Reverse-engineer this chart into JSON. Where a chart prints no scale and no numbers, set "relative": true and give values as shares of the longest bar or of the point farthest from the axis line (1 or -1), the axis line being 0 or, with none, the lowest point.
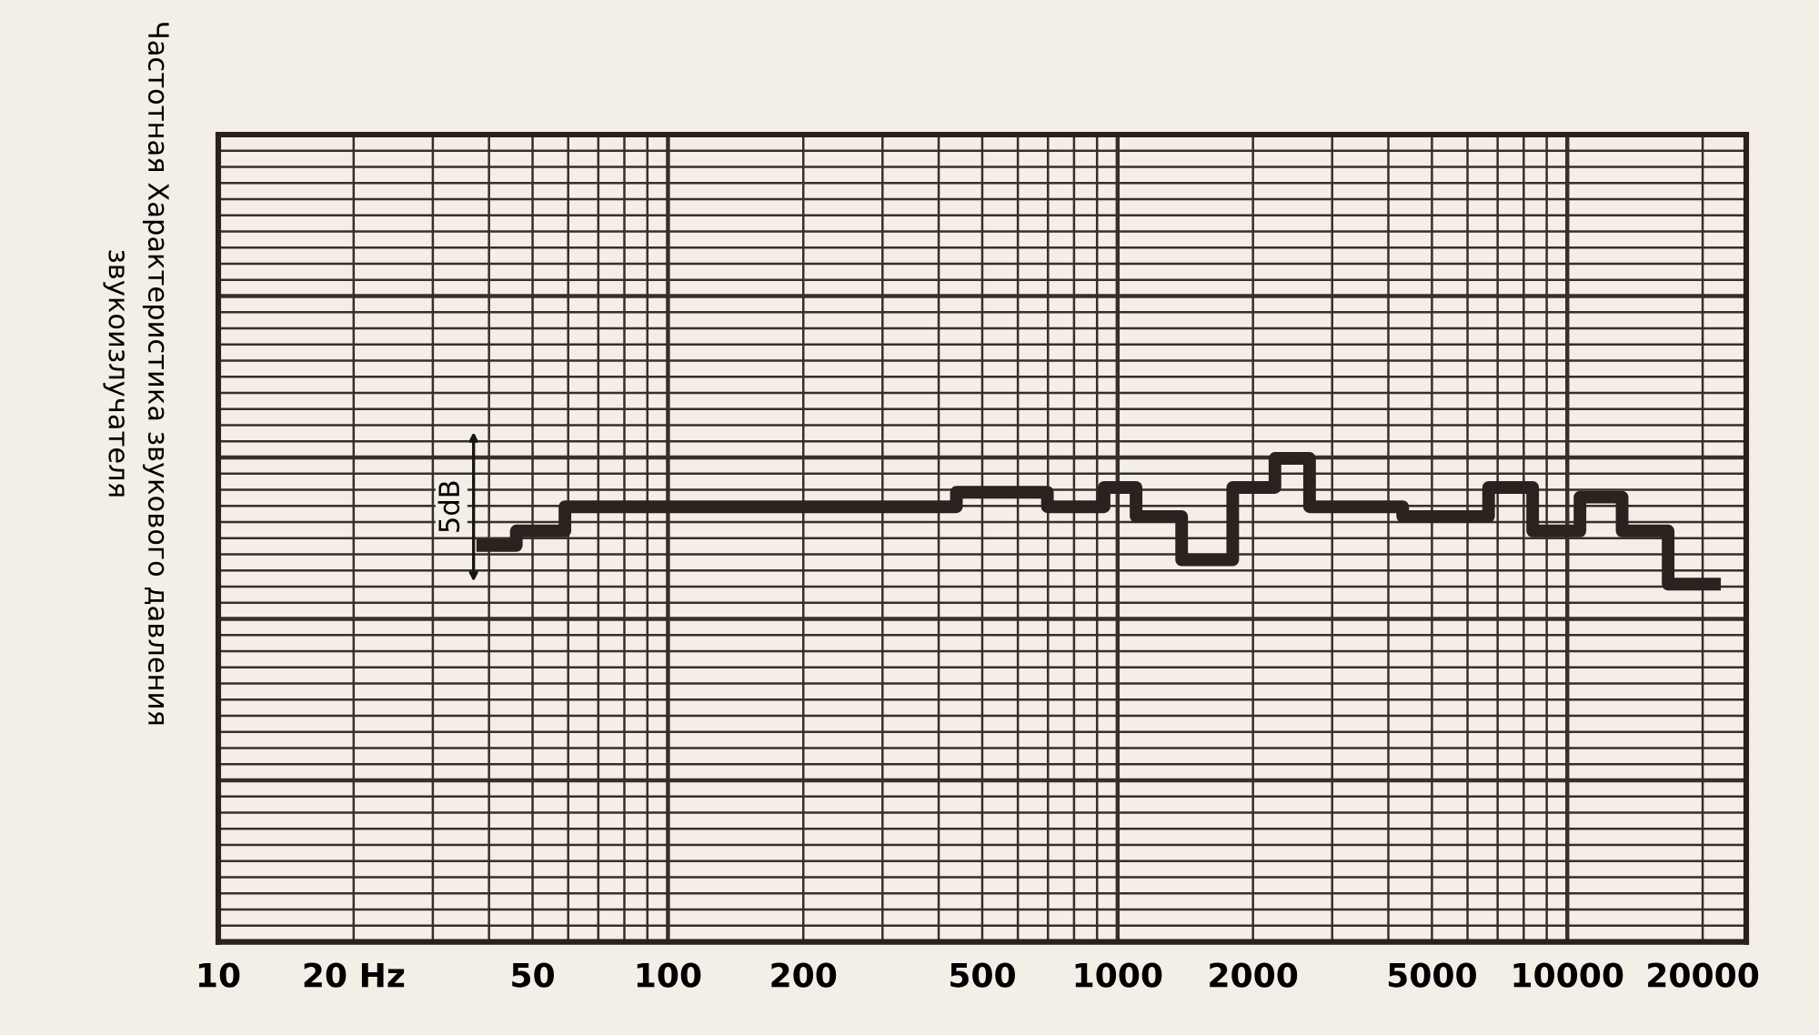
{
  "chart_data": {
    "type": "step",
    "title": "Частотная Характеристика звукового давления\nзвукоизлучателя",
    "relative": true,
    "log": "x",
    "grid": true,
    "tick_labels": "x",
    "legend": false,
    "line_style": "solid",
    "marker": "none",
    "x": [
      37.5,
      46,
      59,
      438,
      698,
      933,
      1099,
      1388,
      1803,
      2238,
      2672,
      4305,
      6683,
      8375,
      10670,
      13240,
      16760,
      21950
    ],
    "series": [
      {
        "color": "#2b2220",
        "values": [
          0.82,
          0.85,
          0.9,
          0.93,
          0.9,
          0.94,
          0.88,
          0.79,
          0.94,
          1,
          0.9,
          0.88,
          0.94,
          0.85,
          0.92,
          0.85,
          0.74,
          0.74
        ]
      }
    ],
    "xlim": [
      10,
      25000
    ],
    "xticks": [
      10,
      {
        "value": 20,
        "label": "20 Hz"
      },
      50,
      100,
      200,
      500,
      1000,
      2000,
      5000,
      10000,
      20000
    ],
    "annotations": [
      {
        "text": "5dB",
        "x": 33,
        "y": 0.9
      }
    ]
  }
}
